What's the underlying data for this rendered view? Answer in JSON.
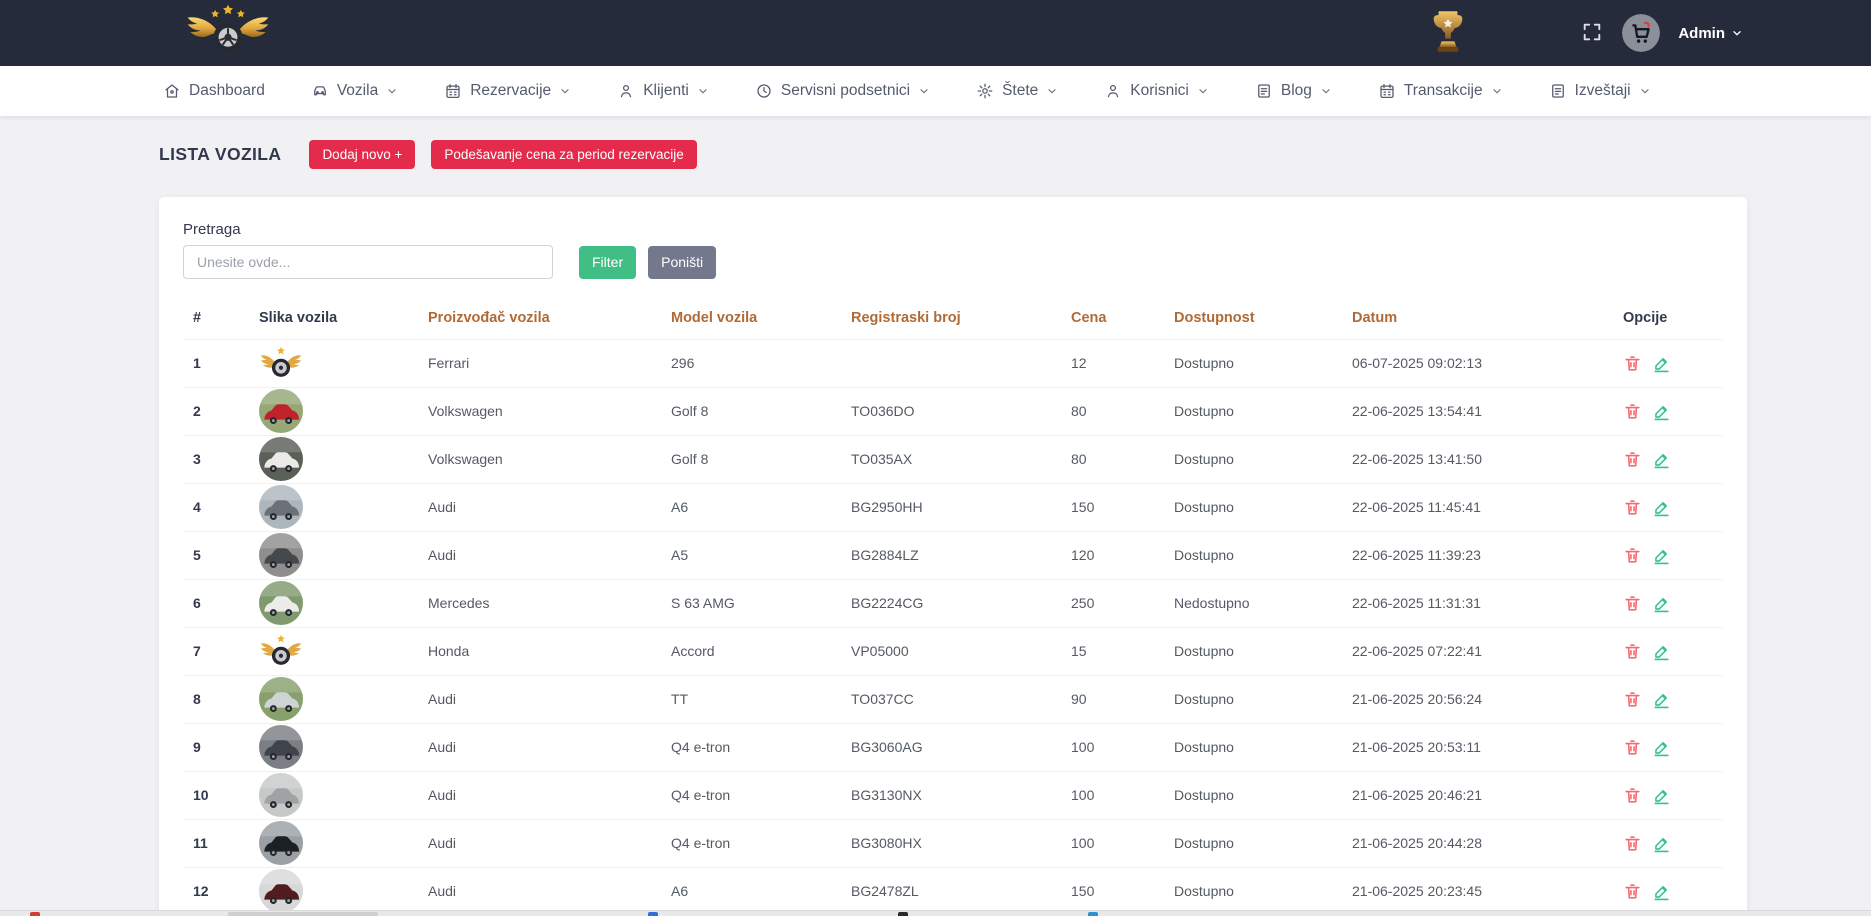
{
  "topbar": {
    "brand": "winged-wheel-logo",
    "trophy": "trophy-icon",
    "admin_label": "Admin"
  },
  "nav": {
    "items": [
      {
        "id": "dashboard",
        "label": "Dashboard",
        "icon": "home",
        "chevron": false
      },
      {
        "id": "vozila",
        "label": "Vozila",
        "icon": "car",
        "chevron": true
      },
      {
        "id": "rezervacije",
        "label": "Rezervacije",
        "icon": "calendar",
        "chevron": true
      },
      {
        "id": "klijenti",
        "label": "Klijenti",
        "icon": "user",
        "chevron": true
      },
      {
        "id": "servisni-podsetnici",
        "label": "Servisni podsetnici",
        "icon": "clock",
        "chevron": true
      },
      {
        "id": "stete",
        "label": "Štete",
        "icon": "gear",
        "chevron": true
      },
      {
        "id": "korisnici",
        "label": "Korisnici",
        "icon": "user",
        "chevron": true
      },
      {
        "id": "blog",
        "label": "Blog",
        "icon": "doc",
        "chevron": true
      },
      {
        "id": "transakcije",
        "label": "Transakcije",
        "icon": "calendar",
        "chevron": true
      },
      {
        "id": "izvestaji",
        "label": "Izveštaji",
        "icon": "doc",
        "chevron": true
      }
    ]
  },
  "page": {
    "title": "LISTA VOZILA",
    "add_button": "Dodaj novo +",
    "price_button": "Podešavanje cena za period rezervacije"
  },
  "search": {
    "label": "Pretraga",
    "placeholder": "Unesite ovde...",
    "filter_label": "Filter",
    "reset_label": "Poništi"
  },
  "table": {
    "columns": [
      {
        "id": "index",
        "label": "#",
        "accent": false
      },
      {
        "id": "image",
        "label": "Slika vozila",
        "accent": false
      },
      {
        "id": "manufacturer",
        "label": "Proizvođač vozila",
        "accent": true
      },
      {
        "id": "model",
        "label": "Model vozila",
        "accent": true
      },
      {
        "id": "plate",
        "label": "Registraski broj",
        "accent": true
      },
      {
        "id": "price",
        "label": "Cena",
        "accent": true
      },
      {
        "id": "availability",
        "label": "Dostupnost",
        "accent": true
      },
      {
        "id": "date",
        "label": "Datum",
        "accent": true
      },
      {
        "id": "options",
        "label": "Opcije",
        "accent": false
      }
    ],
    "rows": [
      {
        "num": "1",
        "image": {
          "type": "logo"
        },
        "manufacturer": "Ferrari",
        "model": "296",
        "plate": "",
        "price": "12",
        "availability": "Dostupno",
        "date": "06-07-2025 09:02:13"
      },
      {
        "num": "2",
        "image": {
          "type": "car",
          "bg": "#97a877",
          "body": "#c0222c"
        },
        "manufacturer": "Volkswagen",
        "model": "Golf 8",
        "plate": "TO036DO",
        "price": "80",
        "availability": "Dostupno",
        "date": "22-06-2025 13:54:41"
      },
      {
        "num": "3",
        "image": {
          "type": "car",
          "bg": "#5a5f57",
          "body": "#eceae6"
        },
        "manufacturer": "Volkswagen",
        "model": "Golf 8",
        "plate": "TO035AX",
        "price": "80",
        "availability": "Dostupno",
        "date": "22-06-2025 13:41:50"
      },
      {
        "num": "4",
        "image": {
          "type": "car",
          "bg": "#aeb6bd",
          "body": "#6b7077"
        },
        "manufacturer": "Audi",
        "model": "A6",
        "plate": "BG2950HH",
        "price": "150",
        "availability": "Dostupno",
        "date": "22-06-2025 11:45:41"
      },
      {
        "num": "5",
        "image": {
          "type": "car",
          "bg": "#8e8e8e",
          "body": "#45484d"
        },
        "manufacturer": "Audi",
        "model": "A5",
        "plate": "BG2884LZ",
        "price": "120",
        "availability": "Dostupno",
        "date": "22-06-2025 11:39:23"
      },
      {
        "num": "6",
        "image": {
          "type": "car",
          "bg": "#7f9a6e",
          "body": "#ececea"
        },
        "manufacturer": "Mercedes",
        "model": "S 63 AMG",
        "plate": "BG2224CG",
        "price": "250",
        "availability": "Nedostupno",
        "date": "22-06-2025 11:31:31"
      },
      {
        "num": "7",
        "image": {
          "type": "logo"
        },
        "manufacturer": "Honda",
        "model": "Accord",
        "plate": "VP05000",
        "price": "15",
        "availability": "Dostupno",
        "date": "22-06-2025 07:22:41"
      },
      {
        "num": "8",
        "image": {
          "type": "car",
          "bg": "#88a06c",
          "body": "#cfd3d6"
        },
        "manufacturer": "Audi",
        "model": "TT",
        "plate": "TO037CC",
        "price": "90",
        "availability": "Dostupno",
        "date": "21-06-2025 20:56:24"
      },
      {
        "num": "9",
        "image": {
          "type": "car",
          "bg": "#7b7f85",
          "body": "#3f444b"
        },
        "manufacturer": "Audi",
        "model": "Q4 e-tron",
        "plate": "BG3060AG",
        "price": "100",
        "availability": "Dostupno",
        "date": "21-06-2025 20:53:11"
      },
      {
        "num": "10",
        "image": {
          "type": "car",
          "bg": "#c7c9c9",
          "body": "#9fa3a6"
        },
        "manufacturer": "Audi",
        "model": "Q4 e-tron",
        "plate": "BG3130NX",
        "price": "100",
        "availability": "Dostupno",
        "date": "21-06-2025 20:46:21"
      },
      {
        "num": "11",
        "image": {
          "type": "car",
          "bg": "#9aa0a6",
          "body": "#1d2023"
        },
        "manufacturer": "Audi",
        "model": "Q4 e-tron",
        "plate": "BG3080HX",
        "price": "100",
        "availability": "Dostupno",
        "date": "21-06-2025 20:44:28"
      },
      {
        "num": "12",
        "image": {
          "type": "car",
          "bg": "#d8d8d8",
          "body": "#501c1e"
        },
        "manufacturer": "Audi",
        "model": "A6",
        "plate": "BG2478ZL",
        "price": "150",
        "availability": "Dostupno",
        "date": "21-06-2025 20:23:45"
      }
    ]
  },
  "colors": {
    "topbar_bg": "#262b3c",
    "button_red": "#e42b4b",
    "button_green": "#41bd86",
    "button_gray": "#74788d",
    "header_accent": "#b06a35",
    "header_dark": "#343a4e",
    "delete_icon": "#f46a6a",
    "edit_icon": "#34c38f"
  }
}
